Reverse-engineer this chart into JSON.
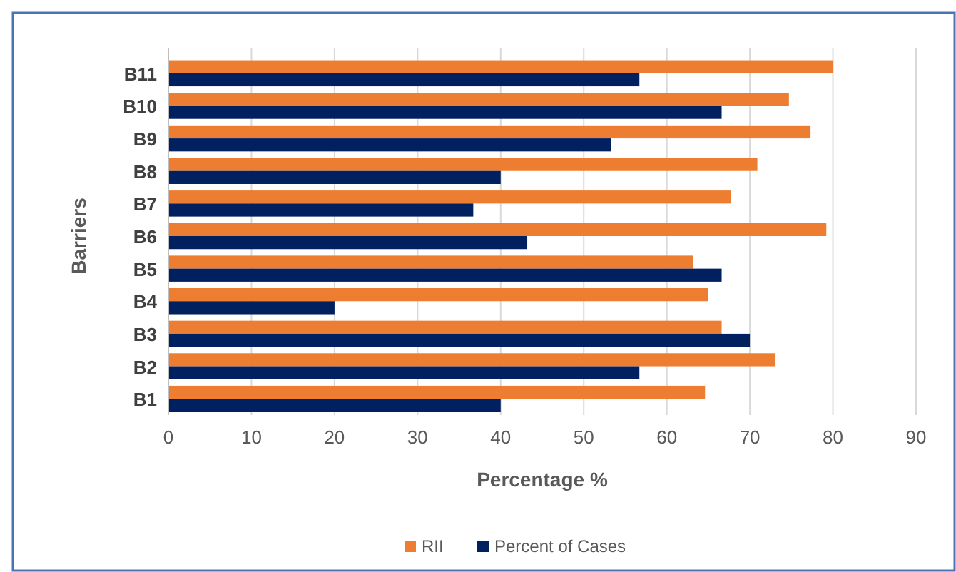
{
  "chart_data": {
    "type": "bar",
    "orientation": "horizontal",
    "xlabel": "Percentage %",
    "ylabel": "Barriers",
    "categories": [
      "B11",
      "B10",
      "B9",
      "B8",
      "B7",
      "B6",
      "B5",
      "B4",
      "B3",
      "B2",
      "B1"
    ],
    "series": [
      {
        "name": "RII",
        "color": "#ed7d31",
        "values": [
          80,
          74.7,
          77.3,
          70.9,
          67.7,
          79.2,
          63.2,
          65,
          66.6,
          73,
          64.6
        ]
      },
      {
        "name": "Percent of Cases",
        "color": "#002060",
        "values": [
          56.7,
          66.6,
          53.3,
          40,
          36.7,
          43.2,
          66.6,
          20,
          70,
          56.7,
          40
        ]
      }
    ],
    "xlim": [
      0,
      90
    ],
    "xticks": [
      0,
      10,
      20,
      30,
      40,
      50,
      60,
      70,
      80,
      90
    ],
    "grid": "x",
    "legend": "bottom"
  }
}
